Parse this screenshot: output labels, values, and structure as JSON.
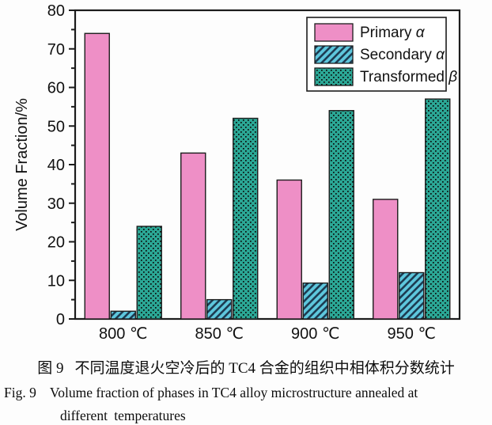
{
  "figure": {
    "caption_zh_label": "图 9",
    "caption_zh_text": "不同温度退火空冷后的 TC4 合金的组织中相体积分数统计",
    "caption_en_label": "Fig. 9",
    "caption_en_text": "Volume fraction of phases in TC4 alloy microstructure annealed at",
    "caption_en_line2": "different temperatures"
  },
  "chart_data": {
    "type": "bar",
    "title": "",
    "xlabel": "",
    "ylabel": "Volume Fraction/%",
    "ylim": [
      0,
      80
    ],
    "ytick_step": 10,
    "yminor_step": 5,
    "grid": false,
    "legend_position": "top-right",
    "axis_color": "#1c1c1c",
    "categories": [
      "800 ℃",
      "850 ℃",
      "900 ℃",
      "950 ℃"
    ],
    "series": [
      {
        "name": "Primary α",
        "values": [
          74,
          43,
          36,
          31
        ],
        "color": "#ee8fc6",
        "pattern": "solid",
        "pattern_color": "#1c1c1c"
      },
      {
        "name": "Secondary α",
        "values": [
          2,
          5,
          9.3,
          12
        ],
        "color": "#5ec7dd",
        "pattern": "diagonal",
        "pattern_color": "#1d3c52"
      },
      {
        "name": "Transformed β",
        "values": [
          24,
          52,
          54,
          57
        ],
        "color": "#2ba795",
        "pattern": "dots",
        "pattern_color": "#0b0b0b"
      }
    ]
  }
}
